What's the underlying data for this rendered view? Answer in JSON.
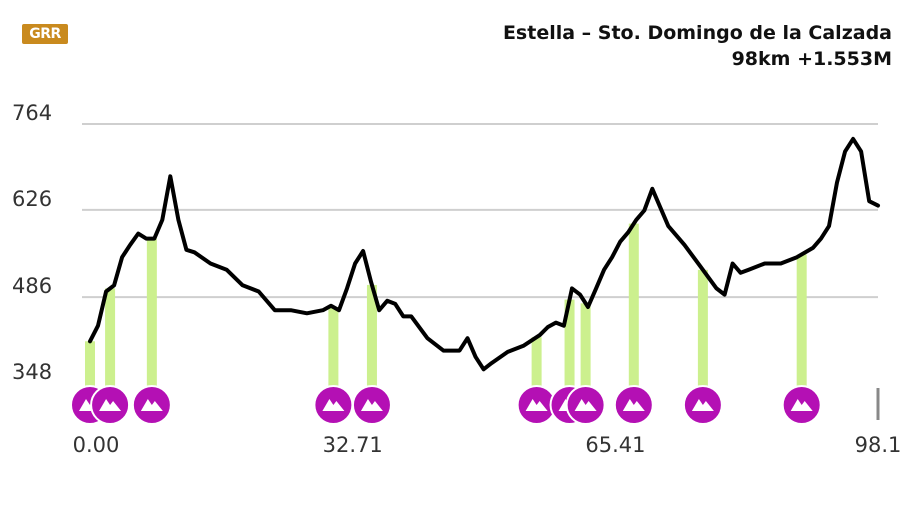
{
  "logo": {
    "text": "GRR"
  },
  "title": {
    "line1": "Estella – Sto. Domingo de la Calzada",
    "line2": "98km +1.553M"
  },
  "colors": {
    "line": "#000000",
    "grid": "#cfcfcf",
    "marker": "#b410b4",
    "highlight": "#ccf08e",
    "text": "#333333"
  },
  "icons": {
    "marker": "mountain-icon"
  },
  "chart_data": {
    "type": "line",
    "xlim": [
      0,
      98.1
    ],
    "ylim": [
      348,
      764
    ],
    "yticks": [
      348,
      486,
      626,
      764
    ],
    "xticks": [
      "0.00",
      "32.71",
      "65.41",
      "98.1"
    ],
    "xtick_values": [
      0,
      32.71,
      65.41,
      98.1
    ],
    "grid": true,
    "series": [
      {
        "x": [
          0,
          1,
          2,
          3,
          4,
          5,
          6,
          7,
          8,
          9,
          10,
          11,
          12,
          13,
          15,
          17,
          19,
          21,
          23,
          25,
          27,
          29,
          30,
          31,
          32,
          33,
          34,
          35,
          36,
          37,
          38,
          39,
          40,
          42,
          44,
          46,
          47,
          48,
          49,
          50,
          52,
          54,
          56,
          57,
          58,
          59,
          60,
          61,
          62,
          63,
          64,
          65,
          66,
          67,
          68,
          69,
          70,
          72,
          74,
          76,
          78,
          79,
          80,
          81,
          82,
          84,
          86,
          88,
          90,
          91,
          92,
          93,
          94,
          95,
          96,
          97,
          98.1
        ],
        "y": [
          415,
          440,
          495,
          505,
          550,
          570,
          588,
          580,
          580,
          610,
          680,
          610,
          562,
          558,
          540,
          530,
          505,
          495,
          465,
          465,
          460,
          465,
          472,
          465,
          500,
          540,
          560,
          510,
          465,
          480,
          475,
          455,
          455,
          420,
          400,
          400,
          420,
          390,
          370,
          380,
          398,
          408,
          425,
          438,
          445,
          440,
          500,
          490,
          470,
          500,
          530,
          550,
          575,
          590,
          610,
          625,
          660,
          600,
          570,
          535,
          500,
          490,
          540,
          525,
          530,
          540,
          540,
          550,
          565,
          580,
          600,
          670,
          720,
          740,
          720,
          640,
          633
        ]
      }
    ],
    "markers_x": [
      0,
      2.5,
      7.7,
      30.3,
      35.1,
      55.6,
      59.7,
      61.7,
      67.7,
      76.3,
      88.6
    ]
  }
}
